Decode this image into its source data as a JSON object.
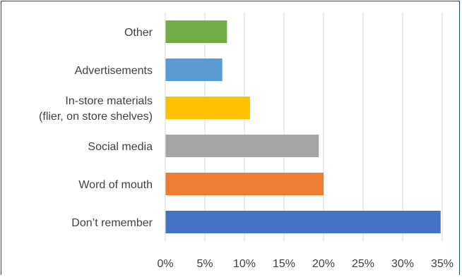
{
  "chart_data": {
    "type": "bar",
    "orientation": "horizontal",
    "categories": [
      [
        "Other"
      ],
      [
        "Advertisements"
      ],
      [
        "In-store materials",
        "(flier, on store shelves)"
      ],
      [
        "Social media"
      ],
      [
        "Word of mouth"
      ],
      [
        "Don’t remember"
      ]
    ],
    "values": [
      7.8,
      7.2,
      10.7,
      19.4,
      20.0,
      34.8
    ],
    "colors": [
      "#70ad47",
      "#5b9bd5",
      "#ffc000",
      "#a5a5a5",
      "#ed7d31",
      "#4472c4"
    ],
    "xlim": [
      0,
      35
    ],
    "xticks": [
      0,
      5,
      10,
      15,
      20,
      25,
      30,
      35
    ],
    "tick_labels": [
      "0%",
      "5%",
      "10%",
      "15%",
      "20%",
      "25%",
      "30%",
      "35%"
    ],
    "grid": "vertical",
    "title": "",
    "xlabel": "",
    "ylabel": ""
  }
}
